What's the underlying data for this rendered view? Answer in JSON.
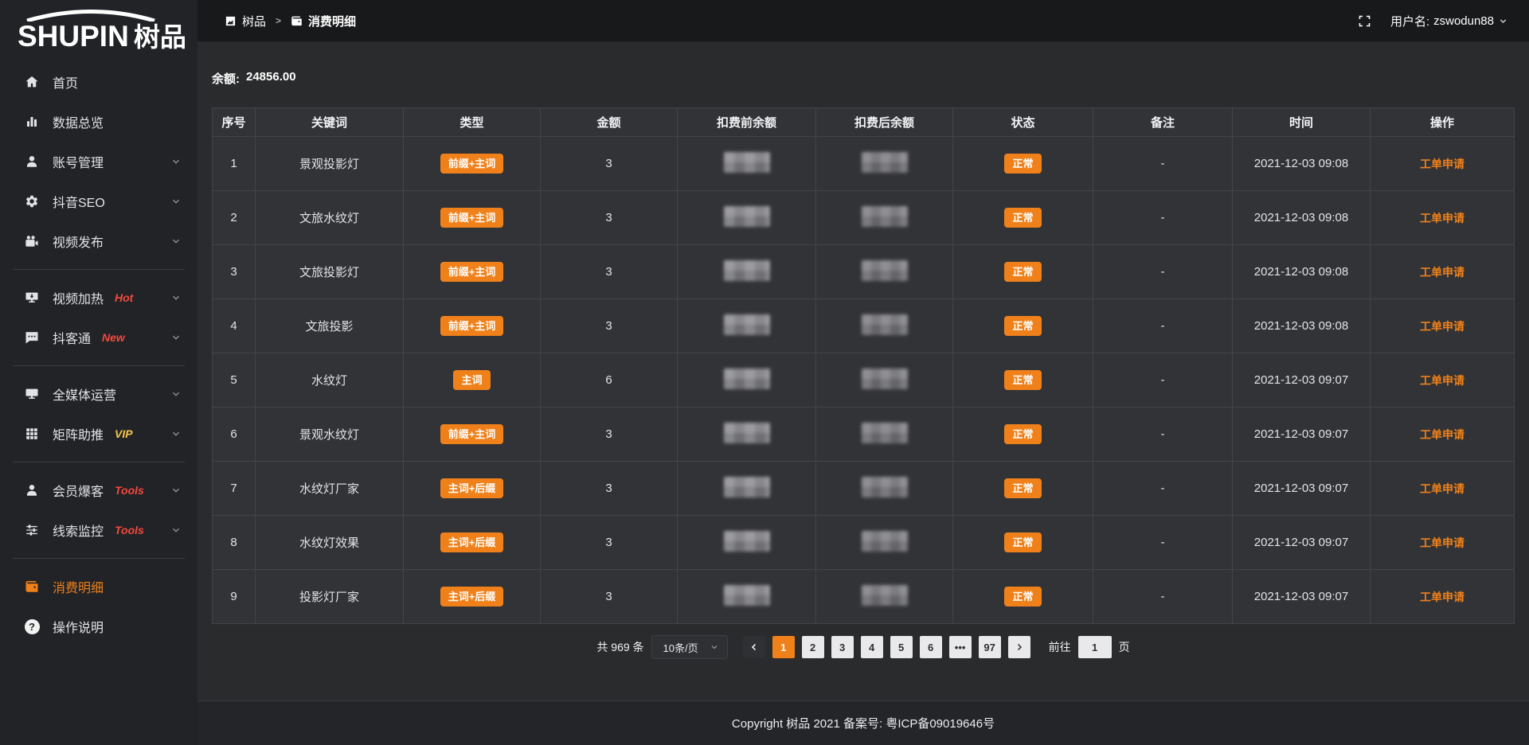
{
  "brand": {
    "logo_en": "SHUPIN",
    "logo_cn": "树品"
  },
  "topbar": {
    "breadcrumb": [
      {
        "label": "树品",
        "icon": "panel-icon"
      },
      {
        "label": "消费明细",
        "icon": "wallet-icon"
      }
    ],
    "separator": ">",
    "username_label": "用户名:",
    "username": "zswodun88"
  },
  "sidebar": {
    "items": [
      {
        "id": "home",
        "label": "首页",
        "icon": "home-icon",
        "chevron": false
      },
      {
        "id": "data-overview",
        "label": "数据总览",
        "icon": "bar-chart-icon",
        "chevron": false
      },
      {
        "id": "account-management",
        "label": "账号管理",
        "icon": "user-icon",
        "chevron": true
      },
      {
        "id": "douyin-seo",
        "label": "抖音SEO",
        "icon": "gear-icon",
        "chevron": true
      },
      {
        "id": "video-publish",
        "label": "视频发布",
        "icon": "video-camera-icon",
        "chevron": true
      },
      {
        "divider": true
      },
      {
        "id": "video-heating",
        "label": "视频加热",
        "badge": "Hot",
        "badge_color": "#F4493C",
        "icon": "monitor-arrow-icon",
        "chevron": true
      },
      {
        "id": "doukotong",
        "label": "抖客通",
        "badge": "New",
        "badge_color": "#F4493C",
        "icon": "chat-icon",
        "chevron": true
      },
      {
        "divider": true
      },
      {
        "id": "all-media-operation",
        "label": "全媒体运营",
        "icon": "monitor-icon",
        "chevron": true
      },
      {
        "id": "matrix-boost",
        "label": "矩阵助推",
        "badge": "VIP",
        "badge_color": "#F6C64A",
        "icon": "grid-icon",
        "chevron": true
      },
      {
        "divider": true
      },
      {
        "id": "member-explosion",
        "label": "会员爆客",
        "badge": "Tools",
        "badge_color": "#F4493C",
        "icon": "user-icon",
        "chevron": true
      },
      {
        "id": "clue-monitoring",
        "label": "线索监控",
        "badge": "Tools",
        "badge_color": "#F4493C",
        "icon": "sliders-icon",
        "chevron": true
      },
      {
        "divider": true
      },
      {
        "id": "consumption-details",
        "label": "消费明细",
        "icon": "wallet-icon",
        "active": true
      },
      {
        "id": "operation-instructions",
        "label": "操作说明",
        "icon": "question-icon"
      }
    ]
  },
  "main": {
    "balance_label": "余额:",
    "balance_value": "24856.00"
  },
  "table": {
    "headers": [
      "序号",
      "关键词",
      "类型",
      "金额",
      "扣费前余额",
      "扣费后余额",
      "状态",
      "备注",
      "时间",
      "操作"
    ],
    "rows": [
      {
        "index": "1",
        "keyword": "景观投影灯",
        "type": "前缀+主词",
        "amount": "3",
        "status": "正常",
        "remark": "-",
        "time": "2021-12-03 09:08",
        "action": "工单申请"
      },
      {
        "index": "2",
        "keyword": "文旅水纹灯",
        "type": "前缀+主词",
        "amount": "3",
        "status": "正常",
        "remark": "-",
        "time": "2021-12-03 09:08",
        "action": "工单申请"
      },
      {
        "index": "3",
        "keyword": "文旅投影灯",
        "type": "前缀+主词",
        "amount": "3",
        "status": "正常",
        "remark": "-",
        "time": "2021-12-03 09:08",
        "action": "工单申请"
      },
      {
        "index": "4",
        "keyword": "文旅投影",
        "type": "前缀+主词",
        "amount": "3",
        "status": "正常",
        "remark": "-",
        "time": "2021-12-03 09:08",
        "action": "工单申请"
      },
      {
        "index": "5",
        "keyword": "水纹灯",
        "type": "主词",
        "amount": "6",
        "status": "正常",
        "remark": "-",
        "time": "2021-12-03 09:07",
        "action": "工单申请"
      },
      {
        "index": "6",
        "keyword": "景观水纹灯",
        "type": "前缀+主词",
        "amount": "3",
        "status": "正常",
        "remark": "-",
        "time": "2021-12-03 09:07",
        "action": "工单申请"
      },
      {
        "index": "7",
        "keyword": "水纹灯厂家",
        "type": "主词+后缀",
        "amount": "3",
        "status": "正常",
        "remark": "-",
        "time": "2021-12-03 09:07",
        "action": "工单申请"
      },
      {
        "index": "8",
        "keyword": "水纹灯效果",
        "type": "主词+后缀",
        "amount": "3",
        "status": "正常",
        "remark": "-",
        "time": "2021-12-03 09:07",
        "action": "工单申请"
      },
      {
        "index": "9",
        "keyword": "投影灯厂家",
        "type": "主词+后缀",
        "amount": "3",
        "status": "正常",
        "remark": "-",
        "time": "2021-12-03 09:07",
        "action": "工单申请"
      }
    ]
  },
  "pagination": {
    "total_label": "共 969 条",
    "page_size": "10条/页",
    "pages": [
      "1",
      "2",
      "3",
      "4",
      "5",
      "6",
      "•••",
      "97"
    ],
    "active_page": "1",
    "goto_label": "前往",
    "goto_value": "1",
    "goto_suffix": "页"
  },
  "footer": {
    "copyright": "Copyright 树品 2021 备案号: 粤ICP备09019646号"
  },
  "colors": {
    "accent_orange": "#F0811A",
    "hot_red": "#F4493C",
    "vip_yellow": "#F6C64A",
    "page_btn_bg": "#E9E9EB"
  }
}
